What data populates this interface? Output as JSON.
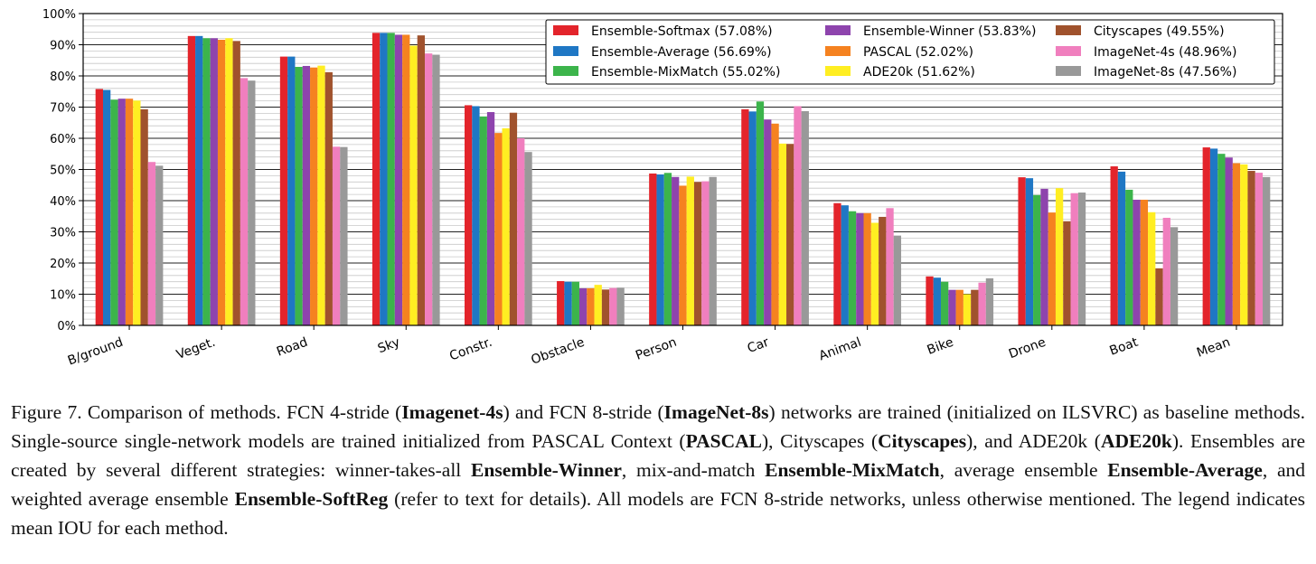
{
  "chart_data": {
    "type": "bar",
    "categories": [
      "B/ground",
      "Veget.",
      "Road",
      "Sky",
      "Constr.",
      "Obstacle",
      "Person",
      "Car",
      "Animal",
      "Bike",
      "Drone",
      "Boat",
      "Mean"
    ],
    "ylim": [
      0,
      100
    ],
    "yticks": [
      "0%",
      "10%",
      "20%",
      "30%",
      "40%",
      "50%",
      "60%",
      "70%",
      "80%",
      "90%",
      "100%"
    ],
    "grid": true,
    "legend_position": "top-right",
    "series": [
      {
        "name": "Ensemble-Softmax (57.08%)",
        "color": "#e3242b",
        "values": [
          75.8,
          92.8,
          86.2,
          93.8,
          70.6,
          14.2,
          48.7,
          69.3,
          39.2,
          15.7,
          47.5,
          51.0,
          57.08
        ]
      },
      {
        "name": "Ensemble-Average (56.69%)",
        "color": "#1f77c4",
        "values": [
          75.5,
          92.8,
          86.2,
          93.8,
          70.3,
          14.0,
          48.4,
          68.6,
          38.5,
          15.3,
          47.2,
          49.3,
          56.69
        ]
      },
      {
        "name": "Ensemble-MixMatch (55.02%)",
        "color": "#3cb44b",
        "values": [
          72.4,
          92.1,
          82.9,
          93.8,
          67.0,
          14.0,
          48.9,
          71.8,
          36.6,
          14.0,
          41.8,
          43.5,
          55.02
        ]
      },
      {
        "name": "Ensemble-Winner (53.83%)",
        "color": "#8e44ad",
        "values": [
          72.7,
          92.1,
          83.2,
          93.2,
          68.4,
          11.9,
          47.6,
          66.0,
          36.0,
          11.4,
          43.8,
          40.3,
          53.83
        ]
      },
      {
        "name": "PASCAL (52.02%)",
        "color": "#f58220",
        "values": [
          72.7,
          91.6,
          82.7,
          93.2,
          61.7,
          11.9,
          44.8,
          64.7,
          36.0,
          11.4,
          36.2,
          40.3,
          52.02
        ]
      },
      {
        "name": "ADE20k (51.62%)",
        "color": "#ffee22",
        "values": [
          72.1,
          92.1,
          83.3,
          89.7,
          63.2,
          13.0,
          47.7,
          58.3,
          32.9,
          10.0,
          44.0,
          36.3,
          51.62
        ]
      },
      {
        "name": "Cityscapes (49.55%)",
        "color": "#a0522d",
        "values": [
          69.3,
          91.2,
          81.2,
          93.0,
          68.2,
          11.5,
          46.0,
          58.2,
          34.8,
          11.4,
          33.4,
          18.3,
          49.55
        ]
      },
      {
        "name": "ImageNet-4s (48.96%)",
        "color": "#f07fbe",
        "values": [
          52.4,
          79.3,
          57.3,
          87.2,
          60.0,
          12.0,
          46.2,
          70.3,
          37.6,
          13.7,
          42.4,
          34.5,
          48.96
        ]
      },
      {
        "name": "ImageNet-8s (47.56%)",
        "color": "#999999",
        "values": [
          51.2,
          78.5,
          57.2,
          86.8,
          55.6,
          12.1,
          47.6,
          68.7,
          28.8,
          15.1,
          42.6,
          31.5,
          47.56
        ]
      }
    ]
  },
  "caption": {
    "p1": "Figure 7. Comparison of methods. FCN 4-stride (",
    "b1": "Imagenet-4s",
    "p2": ") and FCN 8-stride (",
    "b2": "ImageNet-8s",
    "p3": ") networks are trained (initialized on ILSVRC) as baseline methods. Single-source single-network models are trained initialized from PASCAL Context (",
    "b3": "PASCAL",
    "p4": "), Cityscapes (",
    "b4": "Cityscapes",
    "p5": "), and ADE20k (",
    "b5": "ADE20k",
    "p6": "). Ensembles are created by several different strategies: winner-takes-all ",
    "b6": "Ensemble-Winner",
    "p7": ", mix-and-match ",
    "b7": "Ensemble-MixMatch",
    "p8": ", average ensemble ",
    "b8": "Ensemble-Average",
    "p9": ", and weighted average ensemble ",
    "b9": "Ensemble-SoftReg",
    "p10": " (refer to text for details). All models are FCN 8-stride networks, unless otherwise mentioned. The legend indicates mean IOU for each method."
  }
}
